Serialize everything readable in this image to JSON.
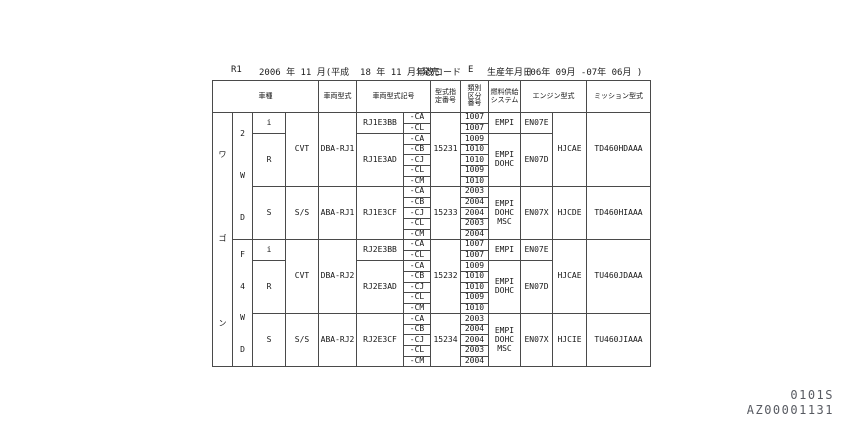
{
  "top_line": {
    "model": "R1",
    "release_date": "2006 年 11 月(平成  18 年 11 月)発売",
    "year_code_label": "年改コード",
    "year_code_value": "E",
    "production_date_label": "生産年月日",
    "production_date_range": "(06年 09月 -07年 06月 )"
  },
  "footer": {
    "page_code": "0101S",
    "document_code": "AZ00001131"
  },
  "colors": {
    "border": "#4a4a4a",
    "footer_text": "#575a61"
  },
  "table": {
    "header_cells": [
      {
        "t": "車種",
        "cs": 4,
        "name": "header-vehicle-class"
      },
      {
        "t": "車両型式",
        "name": "header-vehicle-type"
      },
      {
        "t": "車両型式記号",
        "cs": 2,
        "name": "header-vehicle-type-code"
      },
      {
        "t": "型式指\n定番号",
        "name": "header-type-designation-number"
      },
      {
        "t": "類別\n区分\n番号",
        "name": "header-classification-number"
      },
      {
        "t": "燃料供給\nシステム",
        "name": "header-fuel-supply-system"
      },
      {
        "t": "エンジン型式",
        "cs": 2,
        "name": "header-engine-type"
      },
      {
        "t": "ミッション型式",
        "name": "header-transmission-type"
      }
    ],
    "rows": [
      [
        {
          "t": "ワ\nゴ\nン",
          "rs": 24,
          "v": true,
          "name": "body-type-vertical"
        },
        {
          "t": "2\nW\nD",
          "rs": 12,
          "v": true,
          "name": "drive-type-2wd"
        },
        {
          "t": "i",
          "rs": 2,
          "name": "grade-label"
        },
        {
          "t": "CVT",
          "rs": 7,
          "name": "transmission-label"
        },
        {
          "t": "DBA-RJ1",
          "rs": 7,
          "cls": "left",
          "name": "model-code"
        },
        {
          "t": "RJ1E3BB",
          "rs": 2,
          "cls": "left",
          "name": "vehicle-type-code"
        },
        {
          "t": "-CA",
          "name": "applied-suffix"
        },
        {
          "t": "15231",
          "rs": 7,
          "name": "type-designation-number"
        },
        {
          "t": "1007",
          "name": "classification-number"
        },
        {
          "t": "EMPI",
          "rs": 2,
          "name": "fuel-system"
        },
        {
          "t": "EN07E",
          "rs": 2,
          "cls": "left",
          "name": "engine-code"
        },
        {
          "t": "HJCAE",
          "rs": 7,
          "cls": "left",
          "name": "engine-variant-code"
        },
        {
          "t": "TD460HDAAA",
          "rs": 7,
          "cls": "left",
          "name": "transmission-code"
        }
      ],
      [
        {
          "t": "-CL",
          "name": "applied-suffix"
        },
        {
          "t": "1007",
          "name": "classification-number"
        }
      ],
      [
        {
          "t": "R",
          "rs": 5,
          "name": "grade-label"
        },
        {
          "t": "RJ1E3AD",
          "rs": 5,
          "cls": "left",
          "name": "vehicle-type-code"
        },
        {
          "t": "-CA",
          "name": "applied-suffix"
        },
        {
          "t": "1009",
          "name": "classification-number"
        },
        {
          "t": "EMPI\nDOHC",
          "rs": 5,
          "name": "fuel-system"
        },
        {
          "t": "EN07D",
          "rs": 5,
          "cls": "left",
          "name": "engine-code"
        }
      ],
      [
        {
          "t": "-CB",
          "name": "applied-suffix"
        },
        {
          "t": "1010",
          "name": "classification-number"
        }
      ],
      [
        {
          "t": "-CJ",
          "name": "applied-suffix"
        },
        {
          "t": "1010",
          "name": "classification-number"
        }
      ],
      [
        {
          "t": "-CL",
          "name": "applied-suffix"
        },
        {
          "t": "1009",
          "name": "classification-number"
        }
      ],
      [
        {
          "t": "-CM",
          "name": "applied-suffix"
        },
        {
          "t": "1010",
          "name": "classification-number"
        }
      ],
      [
        {
          "t": "S",
          "rs": 5,
          "name": "grade-label"
        },
        {
          "t": "S/S",
          "rs": 5,
          "name": "transmission-label"
        },
        {
          "t": "ABA-RJ1",
          "rs": 5,
          "cls": "left",
          "name": "model-code"
        },
        {
          "t": "RJ1E3CF",
          "rs": 5,
          "cls": "left",
          "name": "vehicle-type-code"
        },
        {
          "t": "-CA",
          "name": "applied-suffix"
        },
        {
          "t": "15233",
          "rs": 5,
          "name": "type-designation-number"
        },
        {
          "t": "2003",
          "name": "classification-number"
        },
        {
          "t": "EMPI\nDOHC\nMSC",
          "rs": 5,
          "name": "fuel-system"
        },
        {
          "t": "EN07X",
          "rs": 5,
          "cls": "left",
          "name": "engine-code"
        },
        {
          "t": "HJCDE",
          "rs": 5,
          "cls": "left",
          "name": "engine-variant-code"
        },
        {
          "t": "TD460HIAAA",
          "rs": 5,
          "cls": "left",
          "name": "transmission-code"
        }
      ],
      [
        {
          "t": "-CB",
          "name": "applied-suffix"
        },
        {
          "t": "2004",
          "name": "classification-number"
        }
      ],
      [
        {
          "t": "-CJ",
          "name": "applied-suffix"
        },
        {
          "t": "2004",
          "name": "classification-number"
        }
      ],
      [
        {
          "t": "-CL",
          "name": "applied-suffix"
        },
        {
          "t": "2003",
          "name": "classification-number"
        }
      ],
      [
        {
          "t": "-CM",
          "name": "applied-suffix"
        },
        {
          "t": "2004",
          "name": "classification-number"
        }
      ],
      [
        {
          "t": "F\n4\nW\nD",
          "rs": 12,
          "v": true,
          "name": "drive-type-4wd"
        },
        {
          "t": "i",
          "rs": 2,
          "name": "grade-label"
        },
        {
          "t": "CVT",
          "rs": 7,
          "name": "transmission-label"
        },
        {
          "t": "DBA-RJ2",
          "rs": 7,
          "cls": "left",
          "name": "model-code"
        },
        {
          "t": "RJ2E3BB",
          "rs": 2,
          "cls": "left",
          "name": "vehicle-type-code"
        },
        {
          "t": "-CA",
          "name": "applied-suffix"
        },
        {
          "t": "15232",
          "rs": 7,
          "name": "type-designation-number"
        },
        {
          "t": "1007",
          "name": "classification-number"
        },
        {
          "t": "EMPI",
          "rs": 2,
          "name": "fuel-system"
        },
        {
          "t": "EN07E",
          "rs": 2,
          "cls": "left",
          "name": "engine-code"
        },
        {
          "t": "HJCAE",
          "rs": 7,
          "cls": "left",
          "name": "engine-variant-code"
        },
        {
          "t": "TU460JDAAA",
          "rs": 7,
          "cls": "left",
          "name": "transmission-code"
        }
      ],
      [
        {
          "t": "-CL",
          "name": "applied-suffix"
        },
        {
          "t": "1007",
          "name": "classification-number"
        }
      ],
      [
        {
          "t": "R",
          "rs": 5,
          "name": "grade-label"
        },
        {
          "t": "RJ2E3AD",
          "rs": 5,
          "cls": "left",
          "name": "vehicle-type-code"
        },
        {
          "t": "-CA",
          "name": "applied-suffix"
        },
        {
          "t": "1009",
          "name": "classification-number"
        },
        {
          "t": "EMPI\nDOHC",
          "rs": 5,
          "name": "fuel-system"
        },
        {
          "t": "EN07D",
          "rs": 5,
          "cls": "left",
          "name": "engine-code"
        }
      ],
      [
        {
          "t": "-CB",
          "name": "applied-suffix"
        },
        {
          "t": "1010",
          "name": "classification-number"
        }
      ],
      [
        {
          "t": "-CJ",
          "name": "applied-suffix"
        },
        {
          "t": "1010",
          "name": "classification-number"
        }
      ],
      [
        {
          "t": "-CL",
          "name": "applied-suffix"
        },
        {
          "t": "1009",
          "name": "classification-number"
        }
      ],
      [
        {
          "t": "-CM",
          "name": "applied-suffix"
        },
        {
          "t": "1010",
          "name": "classification-number"
        }
      ],
      [
        {
          "t": "S",
          "rs": 5,
          "name": "grade-label"
        },
        {
          "t": "S/S",
          "rs": 5,
          "name": "transmission-label"
        },
        {
          "t": "ABA-RJ2",
          "rs": 5,
          "cls": "left",
          "name": "model-code"
        },
        {
          "t": "RJ2E3CF",
          "rs": 5,
          "cls": "left",
          "name": "vehicle-type-code"
        },
        {
          "t": "-CA",
          "name": "applied-suffix"
        },
        {
          "t": "15234",
          "rs": 5,
          "name": "type-designation-number"
        },
        {
          "t": "2003",
          "name": "classification-number"
        },
        {
          "t": "EMPI\nDOHC\nMSC",
          "rs": 5,
          "name": "fuel-system"
        },
        {
          "t": "EN07X",
          "rs": 5,
          "cls": "left",
          "name": "engine-code"
        },
        {
          "t": "HJCIE",
          "rs": 5,
          "cls": "left",
          "name": "engine-variant-code"
        },
        {
          "t": "TU460JIAAA",
          "rs": 5,
          "cls": "left",
          "name": "transmission-code"
        }
      ],
      [
        {
          "t": "-CB",
          "name": "applied-suffix"
        },
        {
          "t": "2004",
          "name": "classification-number"
        }
      ],
      [
        {
          "t": "-CJ",
          "name": "applied-suffix"
        },
        {
          "t": "2004",
          "name": "classification-number"
        }
      ],
      [
        {
          "t": "-CL",
          "name": "applied-suffix"
        },
        {
          "t": "2003",
          "name": "classification-number"
        }
      ],
      [
        {
          "t": "-CM",
          "name": "applied-suffix"
        },
        {
          "t": "2004",
          "name": "classification-number"
        }
      ]
    ]
  }
}
